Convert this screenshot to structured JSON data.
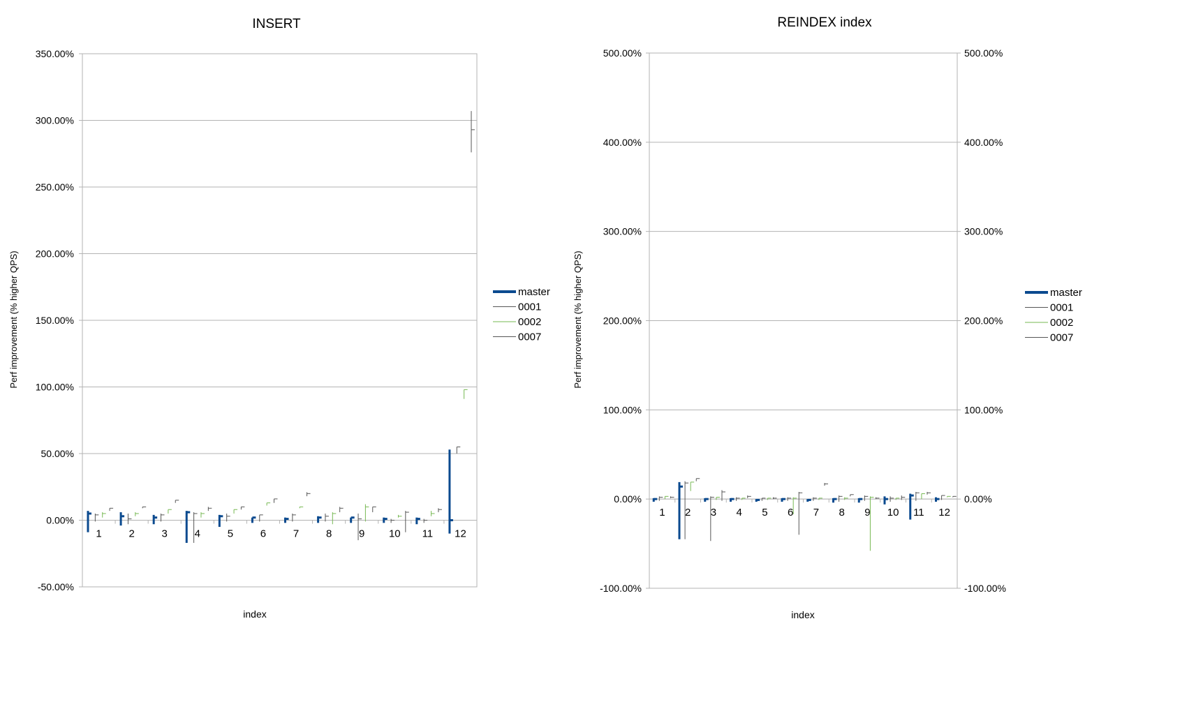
{
  "chart_data": [
    {
      "type": "line",
      "title": "INSERT",
      "xlabel": "index",
      "ylabel": "Perf improvement (% higher QPS)",
      "categories": [
        "1",
        "2",
        "3",
        "4",
        "5",
        "6",
        "7",
        "8",
        "9",
        "10",
        "11",
        "12"
      ],
      "ylim": [
        -50,
        350
      ],
      "yticks": [
        -50,
        0,
        50,
        100,
        150,
        200,
        250,
        300,
        350
      ],
      "ytick_labels": [
        "-50.00%",
        "0.00%",
        "50.00%",
        "100.00%",
        "150.00%",
        "200.00%",
        "250.00%",
        "300.00%",
        "350.00%"
      ],
      "grid": true,
      "legend_position": "right",
      "series": [
        {
          "name": "master",
          "color": "#0b4a8f",
          "width": 3,
          "high": [
            7,
            6,
            4,
            7,
            4,
            2,
            2,
            3,
            2,
            2,
            2,
            53
          ],
          "low": [
            -9,
            -4,
            -3,
            -17,
            -5,
            -2,
            -2,
            -2,
            -2,
            -2,
            -3,
            -10
          ],
          "close": [
            5,
            3,
            2,
            6,
            3,
            2,
            1,
            2,
            2,
            1,
            1,
            0
          ]
        },
        {
          "name": "0001",
          "color": "#555555",
          "width": 1,
          "high": [
            5,
            5,
            5,
            6,
            5,
            4,
            5,
            5,
            5,
            1,
            1,
            55
          ],
          "low": [
            -1,
            -3,
            -1,
            -17,
            -1,
            -1,
            -1,
            -1,
            -15,
            -2,
            -2,
            50
          ],
          "close": [
            4,
            1,
            4,
            5,
            3,
            4,
            4,
            3,
            1,
            0,
            0,
            55
          ]
        },
        {
          "name": "0002",
          "color": "#76b852",
          "width": 1,
          "high": [
            6,
            6,
            8,
            6,
            8,
            13,
            10,
            6,
            12,
            4,
            7,
            98
          ],
          "low": [
            2,
            3,
            5,
            2,
            5,
            11,
            9,
            -3,
            -1,
            2,
            3,
            91
          ],
          "close": [
            5,
            5,
            8,
            5,
            8,
            13,
            10,
            5,
            10,
            3,
            5,
            98
          ]
        },
        {
          "name": "0007",
          "color": "#555555",
          "width": 1,
          "high": [
            9,
            10,
            15,
            10,
            10,
            16,
            21,
            10,
            10,
            7,
            9,
            307
          ],
          "low": [
            7,
            9,
            13,
            7,
            8,
            13,
            18,
            6,
            6,
            -9,
            6,
            276
          ],
          "close": [
            9,
            10,
            15,
            9,
            10,
            16,
            20,
            9,
            10,
            6,
            8,
            293
          ]
        }
      ]
    },
    {
      "type": "line",
      "title": "REINDEX index",
      "xlabel": "index",
      "ylabel": "Perf improvement (% higher QPS)",
      "categories": [
        "1",
        "2",
        "3",
        "4",
        "5",
        "6",
        "7",
        "8",
        "9",
        "10",
        "11",
        "12"
      ],
      "ylim": [
        -100,
        500
      ],
      "yticks": [
        -100,
        0,
        100,
        200,
        300,
        400,
        500
      ],
      "ytick_labels": [
        "-100.00%",
        "0.00%",
        "100.00%",
        "200.00%",
        "300.00%",
        "400.00%",
        "500.00%"
      ],
      "grid": true,
      "legend_position": "right",
      "series": [
        {
          "name": "master",
          "color": "#0b4a8f",
          "width": 3,
          "high": [
            1,
            19,
            1,
            1,
            0,
            1,
            0,
            1,
            1,
            3,
            6,
            2
          ],
          "low": [
            -3,
            -45,
            -3,
            -3,
            -3,
            -3,
            -3,
            -4,
            -4,
            -6,
            -23,
            -3
          ],
          "close": [
            0,
            14,
            0,
            0,
            -1,
            0,
            -1,
            0,
            0,
            0,
            4,
            0
          ]
        },
        {
          "name": "0001",
          "color": "#555555",
          "width": 1,
          "high": [
            3,
            20,
            3,
            2,
            1,
            2,
            2,
            4,
            4,
            3,
            8,
            4
          ],
          "low": [
            -2,
            -45,
            -47,
            -2,
            -2,
            -2,
            -2,
            -3,
            -2,
            -3,
            -2,
            -1
          ],
          "close": [
            2,
            18,
            2,
            1,
            1,
            1,
            1,
            3,
            3,
            1,
            7,
            4
          ]
        },
        {
          "name": "0002",
          "color": "#76b852",
          "width": 1,
          "high": [
            3,
            19,
            2,
            1,
            1,
            2,
            1,
            2,
            3,
            1,
            6,
            3
          ],
          "low": [
            0,
            9,
            -1,
            -1,
            -1,
            -17,
            -1,
            -1,
            -58,
            -1,
            0,
            2
          ],
          "close": [
            3,
            19,
            2,
            1,
            1,
            1,
            1,
            1,
            2,
            1,
            6,
            3
          ]
        },
        {
          "name": "0007",
          "color": "#555555",
          "width": 1,
          "high": [
            3,
            23,
            10,
            4,
            2,
            8,
            18,
            5,
            2,
            4,
            8,
            3
          ],
          "low": [
            1,
            20,
            -2,
            1,
            0,
            -40,
            15,
            3,
            0,
            -1,
            5,
            2
          ],
          "close": [
            2,
            23,
            8,
            3,
            1,
            7,
            17,
            5,
            1,
            2,
            7,
            3
          ]
        }
      ]
    }
  ]
}
